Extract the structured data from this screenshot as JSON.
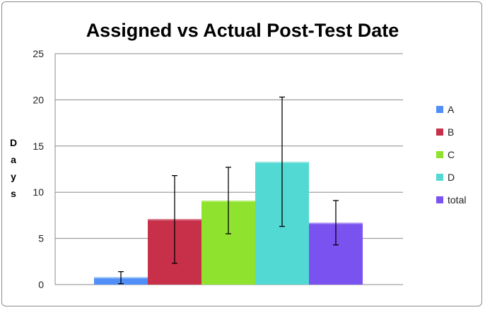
{
  "chart_data": {
    "type": "bar",
    "title": "Assigned vs Actual Post-Test Date",
    "ylabel": "Days",
    "xlabel": "",
    "ylim": [
      0,
      25
    ],
    "yticks": [
      0,
      5,
      10,
      15,
      20,
      25
    ],
    "grid": true,
    "legend_position": "right",
    "series": [
      {
        "name": "A",
        "value": 0.8,
        "error_low": 0.1,
        "error_high": 1.4,
        "color": "#4f8ff7"
      },
      {
        "name": "B",
        "value": 7.1,
        "error_low": 2.3,
        "error_high": 11.8,
        "color": "#c8304a"
      },
      {
        "name": "C",
        "value": 9.1,
        "error_low": 5.5,
        "error_high": 12.7,
        "color": "#8fe32e"
      },
      {
        "name": "D",
        "value": 13.3,
        "error_low": 6.3,
        "error_high": 20.3,
        "color": "#53d9d3"
      },
      {
        "name": "total",
        "value": 6.7,
        "error_low": 4.3,
        "error_high": 9.1,
        "color": "#7a52ef"
      }
    ]
  }
}
